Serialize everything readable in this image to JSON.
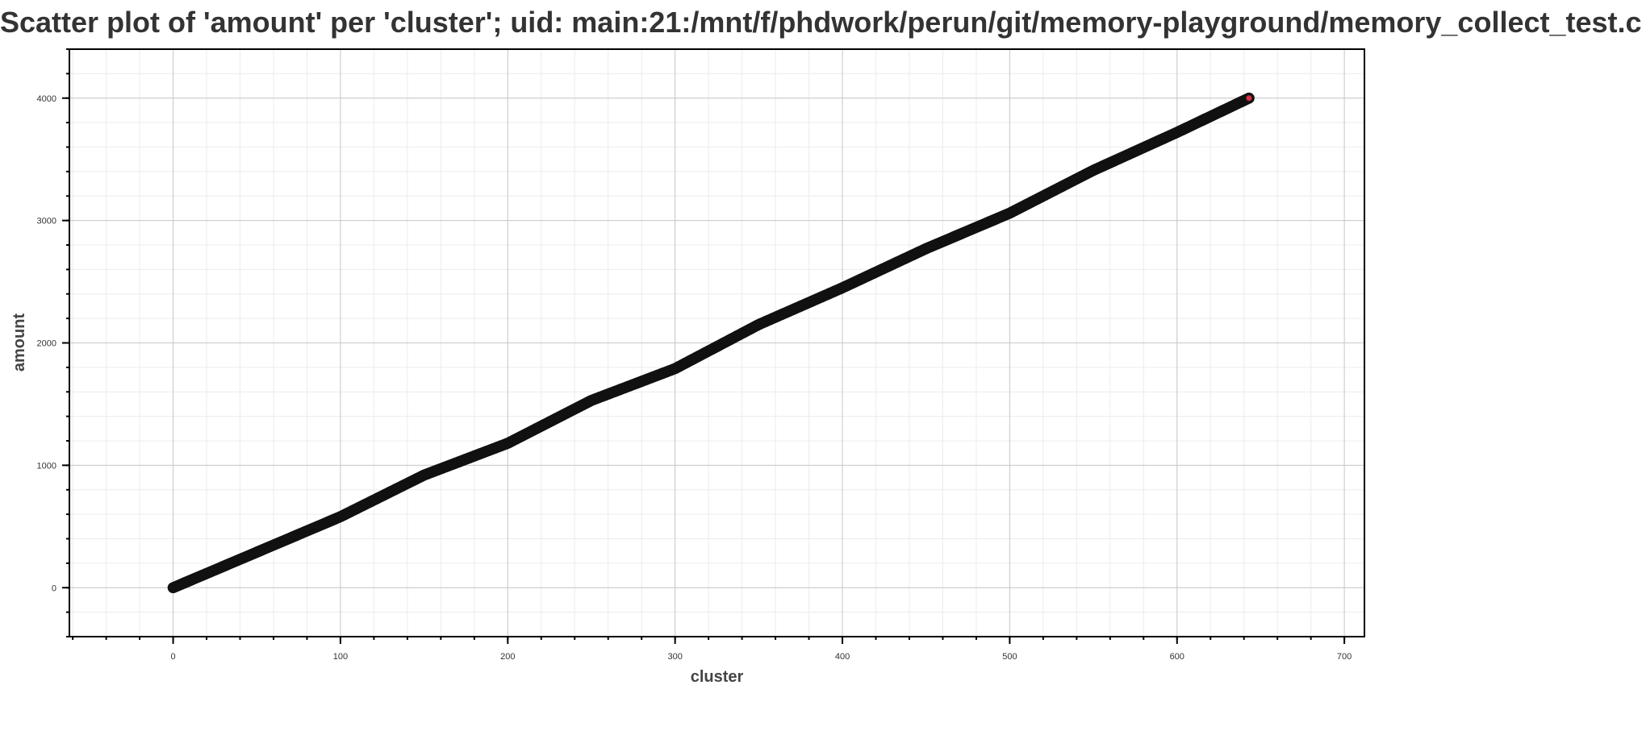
{
  "chart_data": {
    "type": "scatter",
    "title": "Scatter plot of 'amount' per 'cluster'; uid: main:21:/mnt/f/phdwork/perun/git/memory-playground/memory_collect_test.c",
    "xlabel": "cluster",
    "ylabel": "amount",
    "xlim": [
      -62,
      712
    ],
    "ylim": [
      -400,
      4400
    ],
    "x_ticks": [
      0,
      100,
      200,
      300,
      400,
      500,
      600,
      700
    ],
    "y_ticks": [
      0,
      1000,
      2000,
      3000,
      4000
    ],
    "x_tick_labels": [
      "0",
      "100",
      "200",
      "300",
      "400",
      "500",
      "600",
      "700"
    ],
    "y_tick_labels": [
      "0",
      "1000",
      "2000",
      "3000",
      "4000"
    ],
    "grid": true,
    "legend": "none",
    "marker_fill": "#d62f45",
    "marker_edge": "#111111",
    "x_range": [
      0,
      643
    ],
    "y_range": [
      0,
      4000
    ],
    "series": [
      {
        "x": [
          0,
          50,
          100,
          150,
          200,
          250,
          300,
          350,
          400,
          450,
          500,
          550,
          600,
          643
        ],
        "values": [
          0,
          290,
          580,
          920,
          1180,
          1530,
          1790,
          2150,
          2450,
          2770,
          3060,
          3410,
          3720,
          4000
        ]
      }
    ]
  }
}
